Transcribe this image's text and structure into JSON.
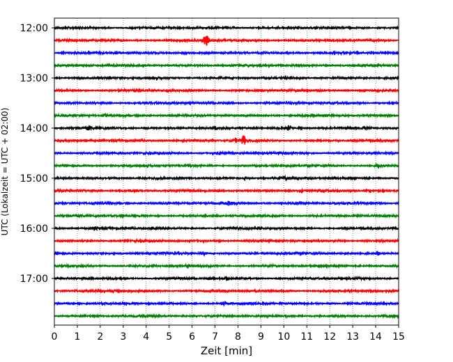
{
  "chart_data": {
    "type": "line",
    "title": "",
    "xlabel": "Zeit  [min]",
    "ylabel": "UTC (Lokalzeit = UTC + 02:00)",
    "xlim": [
      0,
      15
    ],
    "x_ticks": [
      "0",
      "1",
      "2",
      "3",
      "4",
      "5",
      "6",
      "7",
      "8",
      "9",
      "10",
      "11",
      "12",
      "13",
      "14",
      "15"
    ],
    "y_ticks": [
      "12:00",
      "13:00",
      "14:00",
      "15:00",
      "16:00",
      "17:00"
    ],
    "grid": "vertical dotted at each minute",
    "trace_interval_minutes": 15,
    "color_cycle": [
      "#000000",
      "#ff0000",
      "#0000ff",
      "#008000"
    ],
    "traces": [
      {
        "start": "12:00",
        "events": [
          {
            "t": 7.8,
            "amp": 1.2
          }
        ]
      },
      {
        "start": "12:15",
        "events": [
          {
            "t": 6.65,
            "amp": 8
          },
          {
            "t": 6.55,
            "amp": 4
          }
        ]
      },
      {
        "start": "12:30",
        "events": [
          {
            "t": 2.7,
            "amp": 2
          },
          {
            "t": 5.7,
            "amp": 2.5
          }
        ]
      },
      {
        "start": "12:45",
        "events": []
      },
      {
        "start": "13:00",
        "events": []
      },
      {
        "start": "13:15",
        "events": [
          {
            "t": 4.9,
            "amp": 1.5
          }
        ]
      },
      {
        "start": "13:30",
        "events": []
      },
      {
        "start": "13:45",
        "events": [
          {
            "t": 2.2,
            "amp": 2
          }
        ]
      },
      {
        "start": "14:00",
        "events": [
          {
            "t": 1.5,
            "amp": 2
          },
          {
            "t": 7.0,
            "amp": 2
          },
          {
            "t": 10.2,
            "amp": 4
          },
          {
            "t": 13.5,
            "amp": 2
          }
        ]
      },
      {
        "start": "14:15",
        "events": [
          {
            "t": 8.25,
            "amp": 8
          },
          {
            "t": 7.9,
            "amp": 3
          }
        ]
      },
      {
        "start": "14:30",
        "events": [
          {
            "t": 7.2,
            "amp": 2
          }
        ]
      },
      {
        "start": "14:45",
        "events": [
          {
            "t": 14.1,
            "amp": 3
          }
        ]
      },
      {
        "start": "15:00",
        "events": [
          {
            "t": 10.0,
            "amp": 2
          },
          {
            "t": 8.3,
            "amp": 1.5
          }
        ]
      },
      {
        "start": "15:15",
        "events": [
          {
            "t": 3.3,
            "amp": 1.5
          },
          {
            "t": 10.8,
            "amp": 1.5
          }
        ]
      },
      {
        "start": "15:30",
        "events": [
          {
            "t": 7.6,
            "amp": 2.5
          }
        ]
      },
      {
        "start": "15:45",
        "events": []
      },
      {
        "start": "16:00",
        "events": [
          {
            "t": 1.8,
            "amp": 2
          },
          {
            "t": 9.0,
            "amp": 2
          }
        ]
      },
      {
        "start": "16:15",
        "events": []
      },
      {
        "start": "16:30",
        "events": [
          {
            "t": 14.1,
            "amp": 3
          },
          {
            "t": 6.5,
            "amp": 2
          }
        ]
      },
      {
        "start": "16:45",
        "events": [
          {
            "t": 5.8,
            "amp": 1.5
          }
        ]
      },
      {
        "start": "17:00",
        "events": [
          {
            "t": 7.5,
            "amp": 2.5
          }
        ]
      },
      {
        "start": "17:15",
        "events": [
          {
            "t": 2.6,
            "amp": 2
          }
        ]
      },
      {
        "start": "17:30",
        "events": [
          {
            "t": 7.4,
            "amp": 2.5
          }
        ]
      },
      {
        "start": "17:45",
        "events": []
      }
    ]
  }
}
